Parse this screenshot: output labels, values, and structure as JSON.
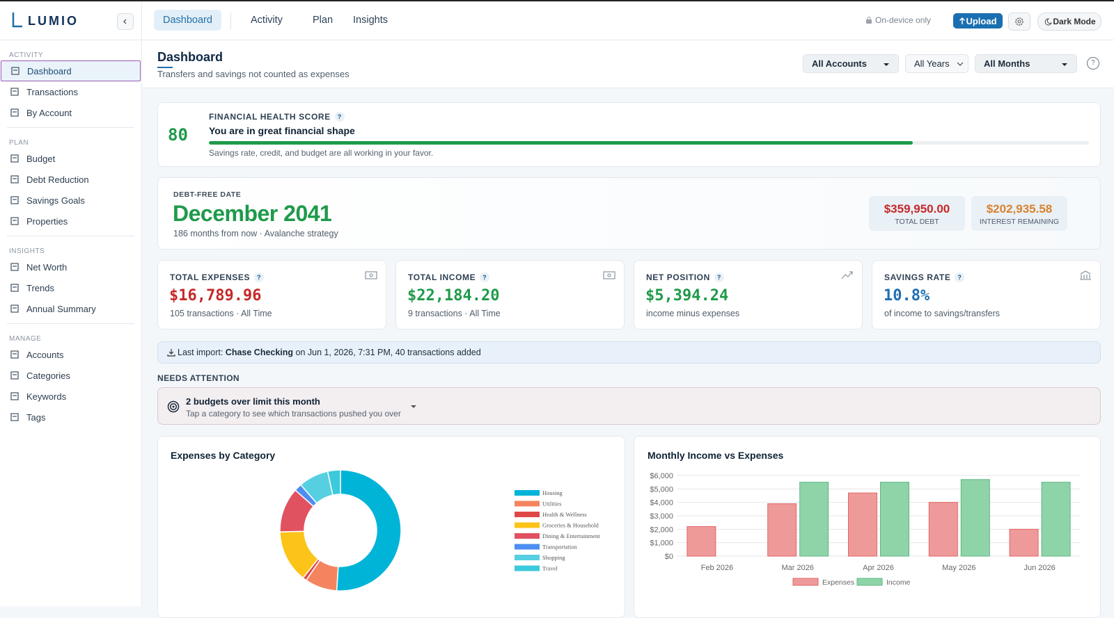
{
  "brand": "LUMIO",
  "sidebar": [
    {
      "heading": "ACTIVITY",
      "items": [
        "Dashboard",
        "Transactions",
        "By Account"
      ]
    },
    {
      "heading": "PLAN",
      "items": [
        "Budget",
        "Debt Reduction",
        "Savings Goals",
        "Properties"
      ]
    },
    {
      "heading": "INSIGHTS",
      "items": [
        "Net Worth",
        "Trends",
        "Annual Summary"
      ]
    },
    {
      "heading": "MANAGE",
      "items": [
        "Accounts",
        "Categories",
        "Keywords",
        "Tags"
      ]
    }
  ],
  "tabs": [
    "Dashboard",
    "Activity",
    "Plan",
    "Insights"
  ],
  "toolbar": {
    "privacy": "On-device only",
    "upload": "Upload",
    "theme": "Dark Mode"
  },
  "header": {
    "title": "Dashboard",
    "subtitle": "Transfers and savings not counted as expenses"
  },
  "filters": [
    "All Accounts",
    "All Years",
    "All Months"
  ],
  "help_icon": "?",
  "health": {
    "score": 80,
    "range": [
      0,
      100
    ],
    "label": "FINANCIAL HEALTH SCORE",
    "headline": "You are in great financial shape",
    "note": "Savings rate, credit, and budget are all working in your favor."
  },
  "debt": {
    "label": "DEBT-FREE DATE",
    "date": "December 2041",
    "note": "186 months from now · Avalanche strategy",
    "stats": [
      {
        "value": "$359,950.00",
        "label": "TOTAL DEBT",
        "color": "#c62828"
      },
      {
        "value": "$202,935.58",
        "label": "INTEREST REMAINING",
        "color": "#d9822b"
      }
    ]
  },
  "cards": [
    {
      "label": "TOTAL EXPENSES",
      "value": "$16,789.96",
      "note": "105 transactions · All Time",
      "color": "#c62828"
    },
    {
      "label": "TOTAL INCOME",
      "value": "$22,184.20",
      "note": "9 transactions · All Time",
      "color": "#1e9a4a"
    },
    {
      "label": "NET POSITION",
      "value": "$5,394.24",
      "note": "income minus expenses",
      "color": "#1e9a4a"
    },
    {
      "label": "SAVINGS RATE",
      "value": "10.8%",
      "note": "of income to savings/transfers",
      "color": "#1f6fb2"
    }
  ],
  "import": {
    "label": "Last import:",
    "account": "Chase Checking",
    "detail": "on Jun 1, 2026, 7:31 PM, 40 transactions added"
  },
  "attention": {
    "heading": "NEEDS ATTENTION",
    "title": "2 budgets over limit this month",
    "subtitle": "Tap a category to see which transactions pushed you over"
  },
  "chart_data": [
    {
      "type": "pie",
      "title": "Expenses by Category",
      "donut": true,
      "legend": "right",
      "categories": [
        "Housing",
        "Utilities",
        "Health & Wellness",
        "Groceries & Household",
        "Dining & Entertainment",
        "Transportation",
        "Shopping",
        "Travel"
      ],
      "values": [
        51,
        8.6,
        1,
        14,
        12,
        2,
        8,
        3.4
      ],
      "colors": [
        "#00b4d8",
        "#f4845f",
        "#e04848",
        "#fcc419",
        "#e05260",
        "#4d8ef0",
        "#56cfe1",
        "#3bc9db"
      ]
    },
    {
      "type": "bar",
      "title": "Monthly Income vs Expenses",
      "legend": "bottom",
      "grid": true,
      "categories": [
        "Feb 2026",
        "Mar 2026",
        "Apr 2026",
        "May 2026",
        "Jun 2026"
      ],
      "series": [
        {
          "name": "Expenses",
          "color": "#ef9a9a",
          "stroke": "#e06666",
          "values": [
            2200,
            3900,
            4700,
            4000,
            2000
          ]
        },
        {
          "name": "Income",
          "color": "#8fd3a8",
          "stroke": "#5cb883",
          "values": [
            null,
            5500,
            5500,
            5700,
            5500
          ]
        }
      ],
      "ylim": [
        0,
        6000
      ],
      "yticks": [
        {
          "value": 0,
          "label": "$0"
        },
        {
          "value": 1000,
          "label": "$1,000"
        },
        {
          "value": 2000,
          "label": "$2,000"
        },
        {
          "value": 3000,
          "label": "$3,000"
        },
        {
          "value": 4000,
          "label": "$4,000"
        },
        {
          "value": 5000,
          "label": "$5,000"
        },
        {
          "value": 6000,
          "label": "$6,000"
        }
      ]
    }
  ]
}
